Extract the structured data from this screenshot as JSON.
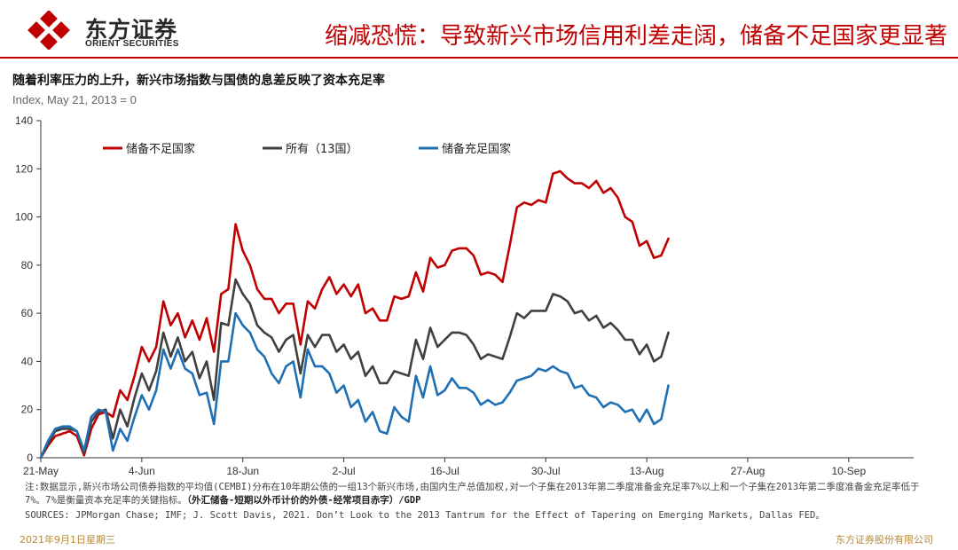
{
  "header": {
    "logo_cn": "东方证券",
    "logo_en": "ORIENT SECURITIES",
    "slide_title": "缩减恐慌：导致新兴市场信用利差走阔，储备不足国家更显著"
  },
  "colors": {
    "brand_red": "#c00000",
    "footer_gold": "#b58a3a"
  },
  "chart_data": {
    "type": "line",
    "title": "随着利率压力的上升，新兴市场指数与国债的息差反映了资本充足率",
    "subtitle": "Index, May 21, 2013 = 0",
    "ylim": [
      0,
      140
    ],
    "yticks": [
      0,
      20,
      40,
      60,
      80,
      100,
      120,
      140
    ],
    "x_tick_labels": [
      "21-May",
      "4-Jun",
      "18-Jun",
      "2-Jul",
      "16-Jul",
      "30-Jul",
      "13-Aug",
      "27-Aug",
      "10-Sep"
    ],
    "x_tick_days": [
      0,
      14,
      28,
      42,
      56,
      70,
      84,
      98,
      112
    ],
    "x_range_days": [
      0,
      121
    ],
    "legend_position": "top-left",
    "grid": false,
    "series": [
      {
        "name": "储备不足国家",
        "color": "#c00000",
        "points": [
          [
            0,
            0
          ],
          [
            1,
            5
          ],
          [
            2,
            9
          ],
          [
            3,
            10
          ],
          [
            4,
            11
          ],
          [
            5,
            9
          ],
          [
            6,
            1
          ],
          [
            7,
            12
          ],
          [
            8,
            18
          ],
          [
            9,
            19
          ],
          [
            10,
            17
          ],
          [
            11,
            28
          ],
          [
            12,
            24
          ],
          [
            13,
            34
          ],
          [
            14,
            46
          ],
          [
            15,
            40
          ],
          [
            16,
            46
          ],
          [
            17,
            65
          ],
          [
            18,
            55
          ],
          [
            19,
            60
          ],
          [
            20,
            50
          ],
          [
            21,
            57
          ],
          [
            22,
            49
          ],
          [
            23,
            58
          ],
          [
            24,
            44
          ],
          [
            25,
            68
          ],
          [
            26,
            70
          ],
          [
            27,
            97
          ],
          [
            28,
            86
          ],
          [
            29,
            80
          ],
          [
            30,
            70
          ],
          [
            31,
            66
          ],
          [
            32,
            66
          ],
          [
            33,
            60
          ],
          [
            34,
            64
          ],
          [
            35,
            64
          ],
          [
            36,
            47
          ],
          [
            37,
            65
          ],
          [
            38,
            62
          ],
          [
            39,
            70
          ],
          [
            40,
            75
          ],
          [
            41,
            68
          ],
          [
            42,
            72
          ],
          [
            43,
            67
          ],
          [
            44,
            72
          ],
          [
            45,
            60
          ],
          [
            46,
            62
          ],
          [
            47,
            57
          ],
          [
            48,
            57
          ],
          [
            49,
            67
          ],
          [
            50,
            66
          ],
          [
            51,
            67
          ],
          [
            52,
            77
          ],
          [
            53,
            69
          ],
          [
            54,
            83
          ],
          [
            55,
            79
          ],
          [
            56,
            80
          ],
          [
            57,
            86
          ],
          [
            58,
            87
          ],
          [
            59,
            87
          ],
          [
            60,
            84
          ],
          [
            61,
            76
          ],
          [
            62,
            77
          ],
          [
            63,
            76
          ],
          [
            64,
            73
          ],
          [
            65,
            88
          ],
          [
            66,
            104
          ],
          [
            67,
            106
          ],
          [
            68,
            105
          ],
          [
            69,
            107
          ],
          [
            70,
            106
          ],
          [
            71,
            118
          ],
          [
            72,
            119
          ],
          [
            73,
            116
          ],
          [
            74,
            114
          ],
          [
            75,
            114
          ],
          [
            76,
            112
          ],
          [
            77,
            115
          ],
          [
            78,
            110
          ],
          [
            79,
            112
          ],
          [
            80,
            108
          ],
          [
            81,
            100
          ],
          [
            82,
            98
          ],
          [
            83,
            88
          ],
          [
            84,
            90
          ],
          [
            85,
            83
          ],
          [
            86,
            84
          ],
          [
            87,
            91
          ]
        ]
      },
      {
        "name": "所有（13国）",
        "color": "#404040",
        "points": [
          [
            0,
            0
          ],
          [
            1,
            6
          ],
          [
            2,
            11
          ],
          [
            3,
            12
          ],
          [
            4,
            12
          ],
          [
            5,
            11
          ],
          [
            6,
            2
          ],
          [
            7,
            15
          ],
          [
            8,
            19
          ],
          [
            9,
            20
          ],
          [
            10,
            8
          ],
          [
            11,
            20
          ],
          [
            12,
            13
          ],
          [
            13,
            25
          ],
          [
            14,
            35
          ],
          [
            15,
            28
          ],
          [
            16,
            36
          ],
          [
            17,
            52
          ],
          [
            18,
            42
          ],
          [
            19,
            50
          ],
          [
            20,
            40
          ],
          [
            21,
            44
          ],
          [
            22,
            33
          ],
          [
            23,
            40
          ],
          [
            24,
            24
          ],
          [
            25,
            56
          ],
          [
            26,
            55
          ],
          [
            27,
            74
          ],
          [
            28,
            68
          ],
          [
            29,
            64
          ],
          [
            30,
            55
          ],
          [
            31,
            52
          ],
          [
            32,
            50
          ],
          [
            33,
            44
          ],
          [
            34,
            49
          ],
          [
            35,
            51
          ],
          [
            36,
            35
          ],
          [
            37,
            51
          ],
          [
            38,
            46
          ],
          [
            39,
            51
          ],
          [
            40,
            51
          ],
          [
            41,
            44
          ],
          [
            42,
            47
          ],
          [
            43,
            41
          ],
          [
            44,
            44
          ],
          [
            45,
            34
          ],
          [
            46,
            38
          ],
          [
            47,
            31
          ],
          [
            48,
            31
          ],
          [
            49,
            36
          ],
          [
            50,
            35
          ],
          [
            51,
            34
          ],
          [
            52,
            49
          ],
          [
            53,
            41
          ],
          [
            54,
            54
          ],
          [
            55,
            46
          ],
          [
            56,
            49
          ],
          [
            57,
            52
          ],
          [
            58,
            52
          ],
          [
            59,
            51
          ],
          [
            60,
            47
          ],
          [
            61,
            41
          ],
          [
            62,
            43
          ],
          [
            63,
            42
          ],
          [
            64,
            41
          ],
          [
            65,
            50
          ],
          [
            66,
            60
          ],
          [
            67,
            58
          ],
          [
            68,
            61
          ],
          [
            69,
            61
          ],
          [
            70,
            61
          ],
          [
            71,
            68
          ],
          [
            72,
            67
          ],
          [
            73,
            65
          ],
          [
            74,
            60
          ],
          [
            75,
            61
          ],
          [
            76,
            57
          ],
          [
            77,
            59
          ],
          [
            78,
            54
          ],
          [
            79,
            56
          ],
          [
            80,
            53
          ],
          [
            81,
            49
          ],
          [
            82,
            49
          ],
          [
            83,
            43
          ],
          [
            84,
            47
          ],
          [
            85,
            40
          ],
          [
            86,
            42
          ],
          [
            87,
            52
          ]
        ]
      },
      {
        "name": "储备充足国家",
        "color": "#1f6fb5",
        "points": [
          [
            0,
            0
          ],
          [
            1,
            7
          ],
          [
            2,
            12
          ],
          [
            3,
            13
          ],
          [
            4,
            13
          ],
          [
            5,
            11
          ],
          [
            6,
            3
          ],
          [
            7,
            17
          ],
          [
            8,
            20
          ],
          [
            9,
            19
          ],
          [
            10,
            3
          ],
          [
            11,
            12
          ],
          [
            12,
            7
          ],
          [
            13,
            17
          ],
          [
            14,
            26
          ],
          [
            15,
            20
          ],
          [
            16,
            28
          ],
          [
            17,
            45
          ],
          [
            18,
            37
          ],
          [
            19,
            45
          ],
          [
            20,
            37
          ],
          [
            21,
            35
          ],
          [
            22,
            26
          ],
          [
            23,
            27
          ],
          [
            24,
            14
          ],
          [
            25,
            40
          ],
          [
            26,
            40
          ],
          [
            27,
            60
          ],
          [
            28,
            55
          ],
          [
            29,
            52
          ],
          [
            30,
            45
          ],
          [
            31,
            42
          ],
          [
            32,
            35
          ],
          [
            33,
            31
          ],
          [
            34,
            38
          ],
          [
            35,
            40
          ],
          [
            36,
            25
          ],
          [
            37,
            45
          ],
          [
            38,
            38
          ],
          [
            39,
            38
          ],
          [
            40,
            35
          ],
          [
            41,
            27
          ],
          [
            42,
            30
          ],
          [
            43,
            21
          ],
          [
            44,
            24
          ],
          [
            45,
            15
          ],
          [
            46,
            19
          ],
          [
            47,
            11
          ],
          [
            48,
            10
          ],
          [
            49,
            21
          ],
          [
            50,
            17
          ],
          [
            51,
            15
          ],
          [
            52,
            34
          ],
          [
            53,
            25
          ],
          [
            54,
            38
          ],
          [
            55,
            26
          ],
          [
            56,
            28
          ],
          [
            57,
            33
          ],
          [
            58,
            29
          ],
          [
            59,
            29
          ],
          [
            60,
            27
          ],
          [
            61,
            22
          ],
          [
            62,
            24
          ],
          [
            63,
            22
          ],
          [
            64,
            23
          ],
          [
            65,
            27
          ],
          [
            66,
            32
          ],
          [
            67,
            33
          ],
          [
            68,
            34
          ],
          [
            69,
            37
          ],
          [
            70,
            36
          ],
          [
            71,
            38
          ],
          [
            72,
            36
          ],
          [
            73,
            35
          ],
          [
            74,
            29
          ],
          [
            75,
            30
          ],
          [
            76,
            26
          ],
          [
            77,
            25
          ],
          [
            78,
            21
          ],
          [
            79,
            23
          ],
          [
            80,
            22
          ],
          [
            81,
            19
          ],
          [
            82,
            20
          ],
          [
            83,
            15
          ],
          [
            84,
            20
          ],
          [
            85,
            14
          ],
          [
            86,
            16
          ],
          [
            87,
            30
          ]
        ]
      }
    ]
  },
  "note": {
    "text": "注:数据显示,新兴市场公司债券指数的平均值(CEMBI)分布在10年期公债的一组13个新兴市场,由国内生产总值加权,对一个子集在2013年第二季度准备金充足率7%以上和一个子集在2013年第二季度准备金充足率低于7%。7%是衡量资本充足率的关键指标。",
    "bold_text": "（外汇储备-短期以外币计价的外债-经常项目赤字）/GDP"
  },
  "sources": "SOURCES: JPMorgan Chase; IMF; J. Scott Davis, 2021. Don’t Look to the 2013 Tantrum for the Effect of Tapering on Emerging Markets, Dallas FED。",
  "footer": {
    "date": "2021年9月1日星期三",
    "company": "东方证券股份有限公司"
  }
}
